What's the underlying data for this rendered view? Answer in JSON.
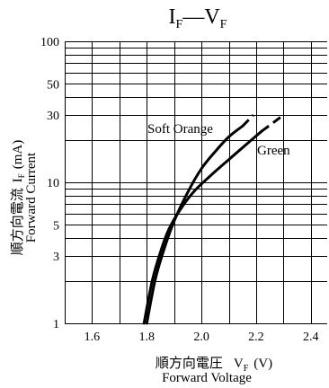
{
  "chart_data": {
    "type": "line",
    "title_main_1": "I",
    "title_sub_1": "F",
    "title_dash": "—",
    "title_main_2": "V",
    "title_sub_2": "F",
    "xlabel_jp": "順方向電圧",
    "xlabel_symbol": "V",
    "xlabel_sub": "F",
    "xlabel_unit": "(V)",
    "xlabel_en": "Forward Voltage",
    "ylabel_jp": "順方向電流",
    "ylabel_symbol": "I",
    "ylabel_sub": "F",
    "ylabel_unit": "(mA)",
    "ylabel_en": "Forward Current",
    "xlim": [
      1.5,
      2.46
    ],
    "ylim": [
      1,
      100
    ],
    "yscale": "log",
    "grid": true,
    "x_ticks": [
      "1.6",
      "1.8",
      "2.0",
      "2.2",
      "2.4"
    ],
    "x_tick_values": [
      1.6,
      1.8,
      2.0,
      2.2,
      2.4
    ],
    "y_ticks": [
      "1",
      "3",
      "5",
      "10",
      "30",
      "50",
      "100"
    ],
    "y_tick_values": [
      1,
      3,
      5,
      10,
      30,
      50,
      100
    ],
    "series": [
      {
        "name": "Soft Orange",
        "x": [
          1.8,
          1.83,
          1.86,
          1.9,
          1.95,
          2.0,
          2.05,
          2.1,
          2.15
        ],
        "y": [
          1,
          2,
          3.2,
          5.3,
          8.5,
          12.5,
          16.5,
          21,
          25
        ],
        "dashed_x": [
          2.15,
          2.19
        ],
        "dashed_y": [
          25,
          30
        ]
      },
      {
        "name": "Green",
        "x": [
          1.79,
          1.82,
          1.85,
          1.88,
          1.92,
          1.97,
          2.03,
          2.1,
          2.17,
          2.22
        ],
        "y": [
          1,
          2,
          3.2,
          4.6,
          6.3,
          8.5,
          11,
          14.5,
          19,
          23
        ],
        "dashed_x": [
          2.22,
          2.3
        ],
        "dashed_y": [
          23,
          30
        ]
      }
    ]
  }
}
